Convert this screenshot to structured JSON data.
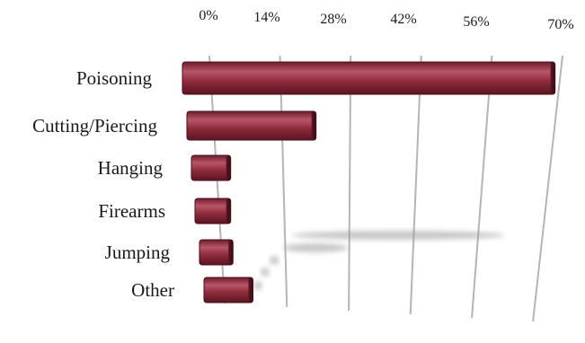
{
  "chart_data": {
    "type": "bar",
    "orientation": "horizontal",
    "style": "3d-perspective",
    "title": "",
    "xlabel": "",
    "ylabel": "",
    "categories": [
      "Poisoning",
      "Cutting/Piercing",
      "Hanging",
      "Firearms",
      "Jumping",
      "Other"
    ],
    "values": [
      69,
      21,
      3,
      2.5,
      2.5,
      6.5
    ],
    "unit": "%",
    "xlim": [
      0,
      70
    ],
    "x_ticks": [
      0,
      14,
      28,
      42,
      56,
      70
    ],
    "x_tick_labels": [
      "0%",
      "14%",
      "28%",
      "42%",
      "56%",
      "70%"
    ],
    "grid": true,
    "legend": "none",
    "colors": {
      "bar": "#8e2b3b",
      "bar_highlight": "#c46a78",
      "bar_dark": "#4a0f1a",
      "grid": "#b5b5b5",
      "text": "#1a1a1a",
      "shadow": "#9a9a9a"
    }
  }
}
